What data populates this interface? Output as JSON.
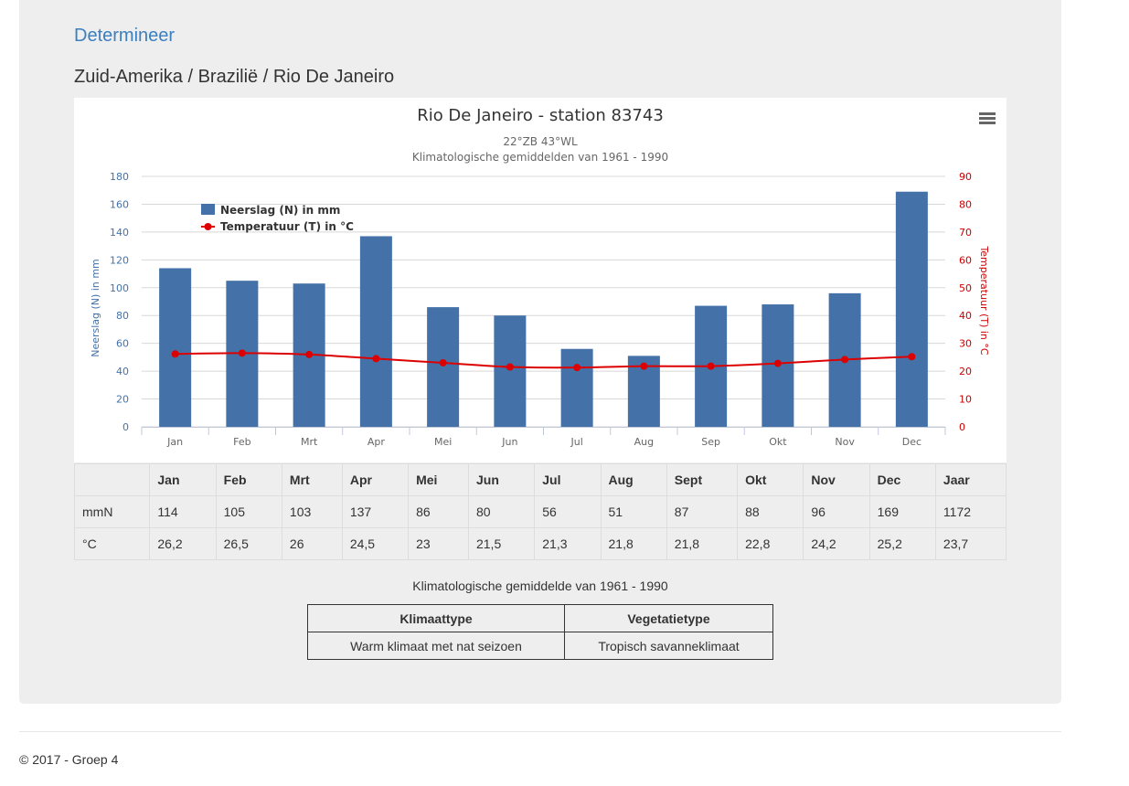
{
  "nav": {
    "link_label": "Determineer"
  },
  "breadcrumb": "Zuid-Amerika / Brazilië / Rio De Janeiro",
  "chart_data": {
    "type": "bar",
    "title": "Rio De Janeiro - station 83743",
    "subtitle_line1": "22°ZB 43°WL",
    "subtitle_line2": "Klimatologische gemiddelden van 1961 - 1990",
    "categories": [
      "Jan",
      "Feb",
      "Mrt",
      "Apr",
      "Mei",
      "Jun",
      "Jul",
      "Aug",
      "Sep",
      "Okt",
      "Nov",
      "Dec"
    ],
    "series": [
      {
        "name": "Neerslag (N) in mm",
        "type": "bar",
        "axis": "left",
        "values": [
          114,
          105,
          103,
          137,
          86,
          80,
          56,
          51,
          87,
          88,
          96,
          169
        ]
      },
      {
        "name": "Temperatuur (T) in °C",
        "type": "line",
        "axis": "right",
        "values": [
          26.2,
          26.5,
          26,
          24.5,
          23,
          21.5,
          21.3,
          21.8,
          21.8,
          22.8,
          24.2,
          25.2
        ]
      }
    ],
    "y_left": {
      "label": "Neerslag (N) in mm",
      "min": 0,
      "max": 180,
      "ticks": [
        "0",
        "20",
        "40",
        "60",
        "80",
        "100",
        "120",
        "140",
        "160",
        "180"
      ]
    },
    "y_right": {
      "label": "Temperatuur (T) in °C",
      "min": 0,
      "max": 90,
      "ticks": [
        "0",
        "10",
        "20",
        "30",
        "40",
        "50",
        "60",
        "70",
        "80",
        "90"
      ]
    },
    "grid": true,
    "legend_position": "top-left",
    "colors": {
      "bar": "#4472a8",
      "line": "#dd0000"
    }
  },
  "table": {
    "headers": [
      "",
      "Jan",
      "Feb",
      "Mrt",
      "Apr",
      "Mei",
      "Jun",
      "Jul",
      "Aug",
      "Sept",
      "Okt",
      "Nov",
      "Dec",
      "Jaar"
    ],
    "rows": [
      [
        "mmN",
        "114",
        "105",
        "103",
        "137",
        "86",
        "80",
        "56",
        "51",
        "87",
        "88",
        "96",
        "169",
        "1172"
      ],
      [
        "°C",
        "26,2",
        "26,5",
        "26",
        "24,5",
        "23",
        "21,5",
        "21,3",
        "21,8",
        "21,8",
        "22,8",
        "24,2",
        "25,2",
        "23,7"
      ]
    ]
  },
  "caption": "Klimatologische gemiddelde van 1961 - 1990",
  "klimaat": {
    "headers": [
      "Klimaattype",
      "Vegetatietype"
    ],
    "values": [
      "Warm klimaat met nat seizoen",
      "Tropisch savanneklimaat"
    ]
  },
  "footer": "© 2017 - Groep 4",
  "icons": {
    "chart_menu": "hamburger-menu-icon"
  }
}
